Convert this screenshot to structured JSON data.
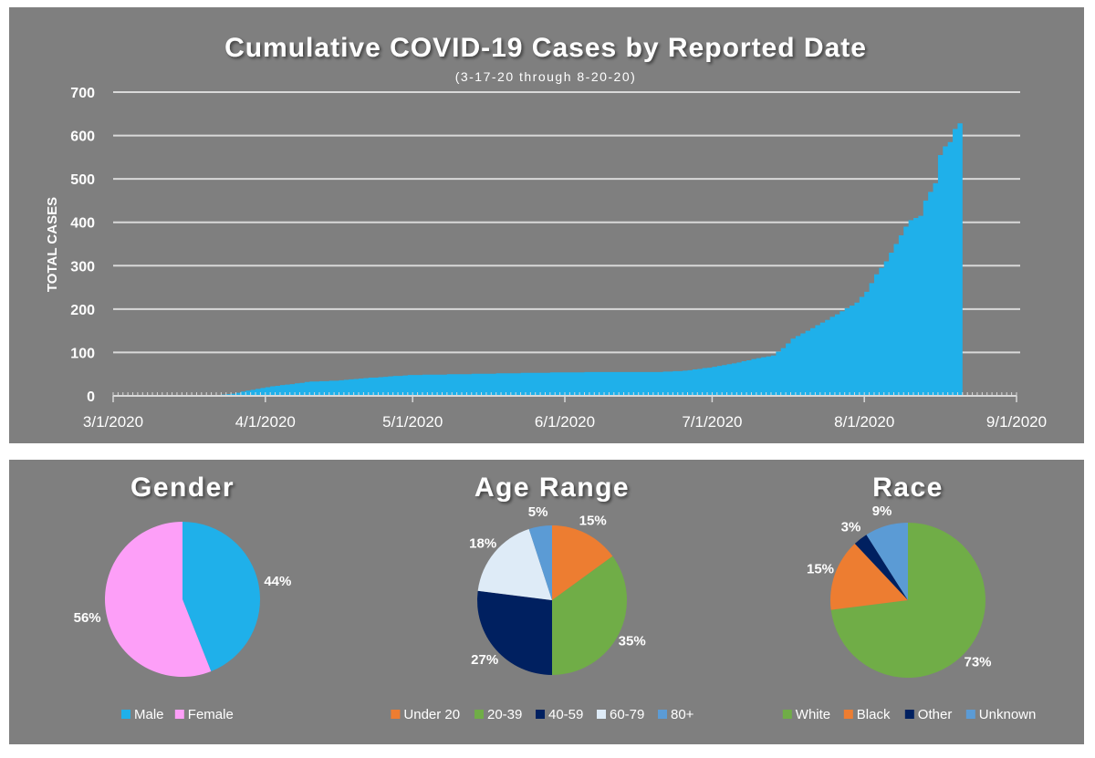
{
  "chart_data": [
    {
      "type": "area",
      "title": "Cumulative COVID-19 Cases by Reported Date",
      "subtitle": "(3-17-20 through 8-20-20)",
      "xlabel": "",
      "ylabel": "TOTAL CASES",
      "ylim": [
        0,
        700
      ],
      "yticks": [
        0,
        100,
        200,
        300,
        400,
        500,
        600,
        700
      ],
      "xlim": [
        "2020-03-01",
        "2020-09-01"
      ],
      "xtick_labels": [
        "3/1/2020",
        "4/1/2020",
        "5/1/2020",
        "6/1/2020",
        "7/1/2020",
        "8/1/2020",
        "9/1/2020"
      ],
      "grid": true,
      "legend": "none",
      "color": "#1fb0ea",
      "series": [
        {
          "name": "Total Cases",
          "x_start": "2020-03-17",
          "x_end": "2020-08-20",
          "anchors": [
            [
              "2020-03-17",
              1
            ],
            [
              "2020-03-22",
              2
            ],
            [
              "2020-03-25",
              5
            ],
            [
              "2020-03-28",
              12
            ],
            [
              "2020-04-01",
              20
            ],
            [
              "2020-04-05",
              26
            ],
            [
              "2020-04-10",
              33
            ],
            [
              "2020-04-15",
              35
            ],
            [
              "2020-04-20",
              40
            ],
            [
              "2020-04-25",
              44
            ],
            [
              "2020-04-30",
              48
            ],
            [
              "2020-05-10",
              50
            ],
            [
              "2020-05-20",
              52
            ],
            [
              "2020-05-31",
              54
            ],
            [
              "2020-06-10",
              55
            ],
            [
              "2020-06-20",
              55
            ],
            [
              "2020-06-25",
              58
            ],
            [
              "2020-06-30",
              65
            ],
            [
              "2020-07-05",
              75
            ],
            [
              "2020-07-10",
              87
            ],
            [
              "2020-07-13",
              93
            ],
            [
              "2020-07-15",
              110
            ],
            [
              "2020-07-17",
              132
            ],
            [
              "2020-07-20",
              150
            ],
            [
              "2020-07-24",
              175
            ],
            [
              "2020-07-27",
              195
            ],
            [
              "2020-07-30",
              215
            ],
            [
              "2020-08-01",
              240
            ],
            [
              "2020-08-03",
              280
            ],
            [
              "2020-08-05",
              310
            ],
            [
              "2020-08-07",
              350
            ],
            [
              "2020-08-09",
              390
            ],
            [
              "2020-08-10",
              405
            ],
            [
              "2020-08-12",
              415
            ],
            [
              "2020-08-13",
              450
            ],
            [
              "2020-08-14",
              470
            ],
            [
              "2020-08-15",
              490
            ],
            [
              "2020-08-16",
              555
            ],
            [
              "2020-08-17",
              575
            ],
            [
              "2020-08-18",
              585
            ],
            [
              "2020-08-19",
              615
            ],
            [
              "2020-08-20",
              628
            ]
          ]
        }
      ]
    },
    {
      "type": "pie",
      "title": "Gender",
      "legend": "bottom",
      "slices": [
        {
          "label": "Male",
          "value": 44,
          "display": "44%",
          "color": "#1fb0ea"
        },
        {
          "label": "Female",
          "value": 56,
          "display": "56%",
          "color": "#fd9ff8"
        }
      ]
    },
    {
      "type": "pie",
      "title": "Age Range",
      "legend": "bottom",
      "slices": [
        {
          "label": "Under 20",
          "value": 15,
          "display": "15%",
          "color": "#ed7d31"
        },
        {
          "label": "20-39",
          "value": 35,
          "display": "35%",
          "color": "#70ad47"
        },
        {
          "label": "40-59",
          "value": 27,
          "display": "27%",
          "color": "#002060"
        },
        {
          "label": "60-79",
          "value": 18,
          "display": "18%",
          "color": "#deebf7"
        },
        {
          "label": "80+",
          "value": 5,
          "display": "5%",
          "color": "#5b9bd5"
        }
      ]
    },
    {
      "type": "pie",
      "title": "Race",
      "legend": "bottom",
      "slices": [
        {
          "label": "White",
          "value": 73,
          "display": "73%",
          "color": "#70ad47"
        },
        {
          "label": "Black",
          "value": 15,
          "display": "15%",
          "color": "#ed7d31"
        },
        {
          "label": "Other",
          "value": 3,
          "display": "3%",
          "color": "#002060"
        },
        {
          "label": "Unknown",
          "value": 9,
          "display": "9%",
          "color": "#5b9bd5"
        }
      ]
    }
  ]
}
